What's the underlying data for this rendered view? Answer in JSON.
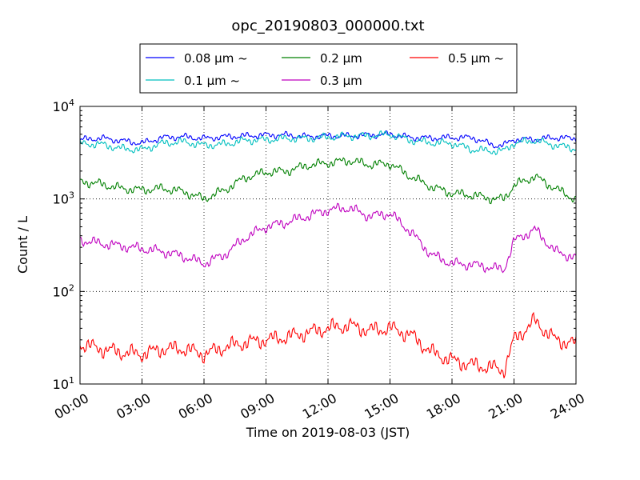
{
  "chart_data": {
    "type": "line",
    "title": "opc_20190803_000000.txt",
    "xlabel": "Time on 2019-08-03 (JST)",
    "ylabel": "Count / L",
    "yscale": "log",
    "ylim": [
      10,
      10000
    ],
    "xlim": [
      "00:00",
      "24:00"
    ],
    "xticks": [
      "00:00",
      "03:00",
      "06:00",
      "09:00",
      "12:00",
      "15:00",
      "18:00",
      "21:00",
      "24:00"
    ],
    "yticks": [
      {
        "value": 10,
        "base": "10",
        "exp": "1"
      },
      {
        "value": 100,
        "base": "10",
        "exp": "2"
      },
      {
        "value": 1000,
        "base": "10",
        "exp": "3"
      },
      {
        "value": 10000,
        "base": "10",
        "exp": "4"
      }
    ],
    "grid": true,
    "legend_position": "top-center",
    "x_hours": [
      0,
      1,
      2,
      3,
      4,
      5,
      6,
      7,
      8,
      9,
      10,
      11,
      12,
      13,
      14,
      15,
      16,
      17,
      18,
      19,
      20,
      20.5,
      21,
      22,
      23,
      24
    ],
    "series": [
      {
        "name": "0.08 μm ~",
        "color": "#0000ff",
        "values": [
          4350,
          4550,
          4250,
          4000,
          4600,
          4700,
          4500,
          4700,
          4800,
          4900,
          4900,
          4700,
          4800,
          4800,
          4900,
          5000,
          4600,
          4550,
          4600,
          4600,
          3800,
          3800,
          4400,
          4400,
          4600,
          4500
        ]
      },
      {
        "name": "0.1 μm ~",
        "color": "#00bfbf",
        "values": [
          3950,
          3900,
          3500,
          3400,
          4000,
          4150,
          3800,
          3900,
          4300,
          4350,
          4500,
          4500,
          4650,
          4800,
          4800,
          5000,
          4300,
          4050,
          4000,
          3400,
          3300,
          3300,
          4000,
          4300,
          3800,
          3500
        ]
      },
      {
        "name": "0.2 μm",
        "color": "#008000",
        "values": [
          1550,
          1450,
          1300,
          1250,
          1300,
          1200,
          1000,
          1250,
          1700,
          1950,
          2000,
          2300,
          2450,
          2600,
          2350,
          2400,
          1750,
          1350,
          1150,
          1100,
          1000,
          1000,
          1400,
          1750,
          1300,
          980
        ]
      },
      {
        "name": "0.3 μm",
        "color": "#bf00bf",
        "values": [
          360,
          330,
          310,
          290,
          270,
          240,
          200,
          250,
          380,
          500,
          560,
          650,
          760,
          800,
          650,
          700,
          440,
          250,
          200,
          195,
          180,
          170,
          350,
          470,
          270,
          230
        ]
      },
      {
        "name": "0.5 μm ~",
        "color": "#ff0000",
        "values": [
          27,
          24,
          22,
          21,
          24,
          24,
          21,
          25,
          28,
          30,
          32,
          36,
          40,
          43,
          38,
          40,
          34,
          22,
          18,
          16,
          15,
          14,
          30,
          48,
          30,
          27
        ]
      }
    ]
  }
}
